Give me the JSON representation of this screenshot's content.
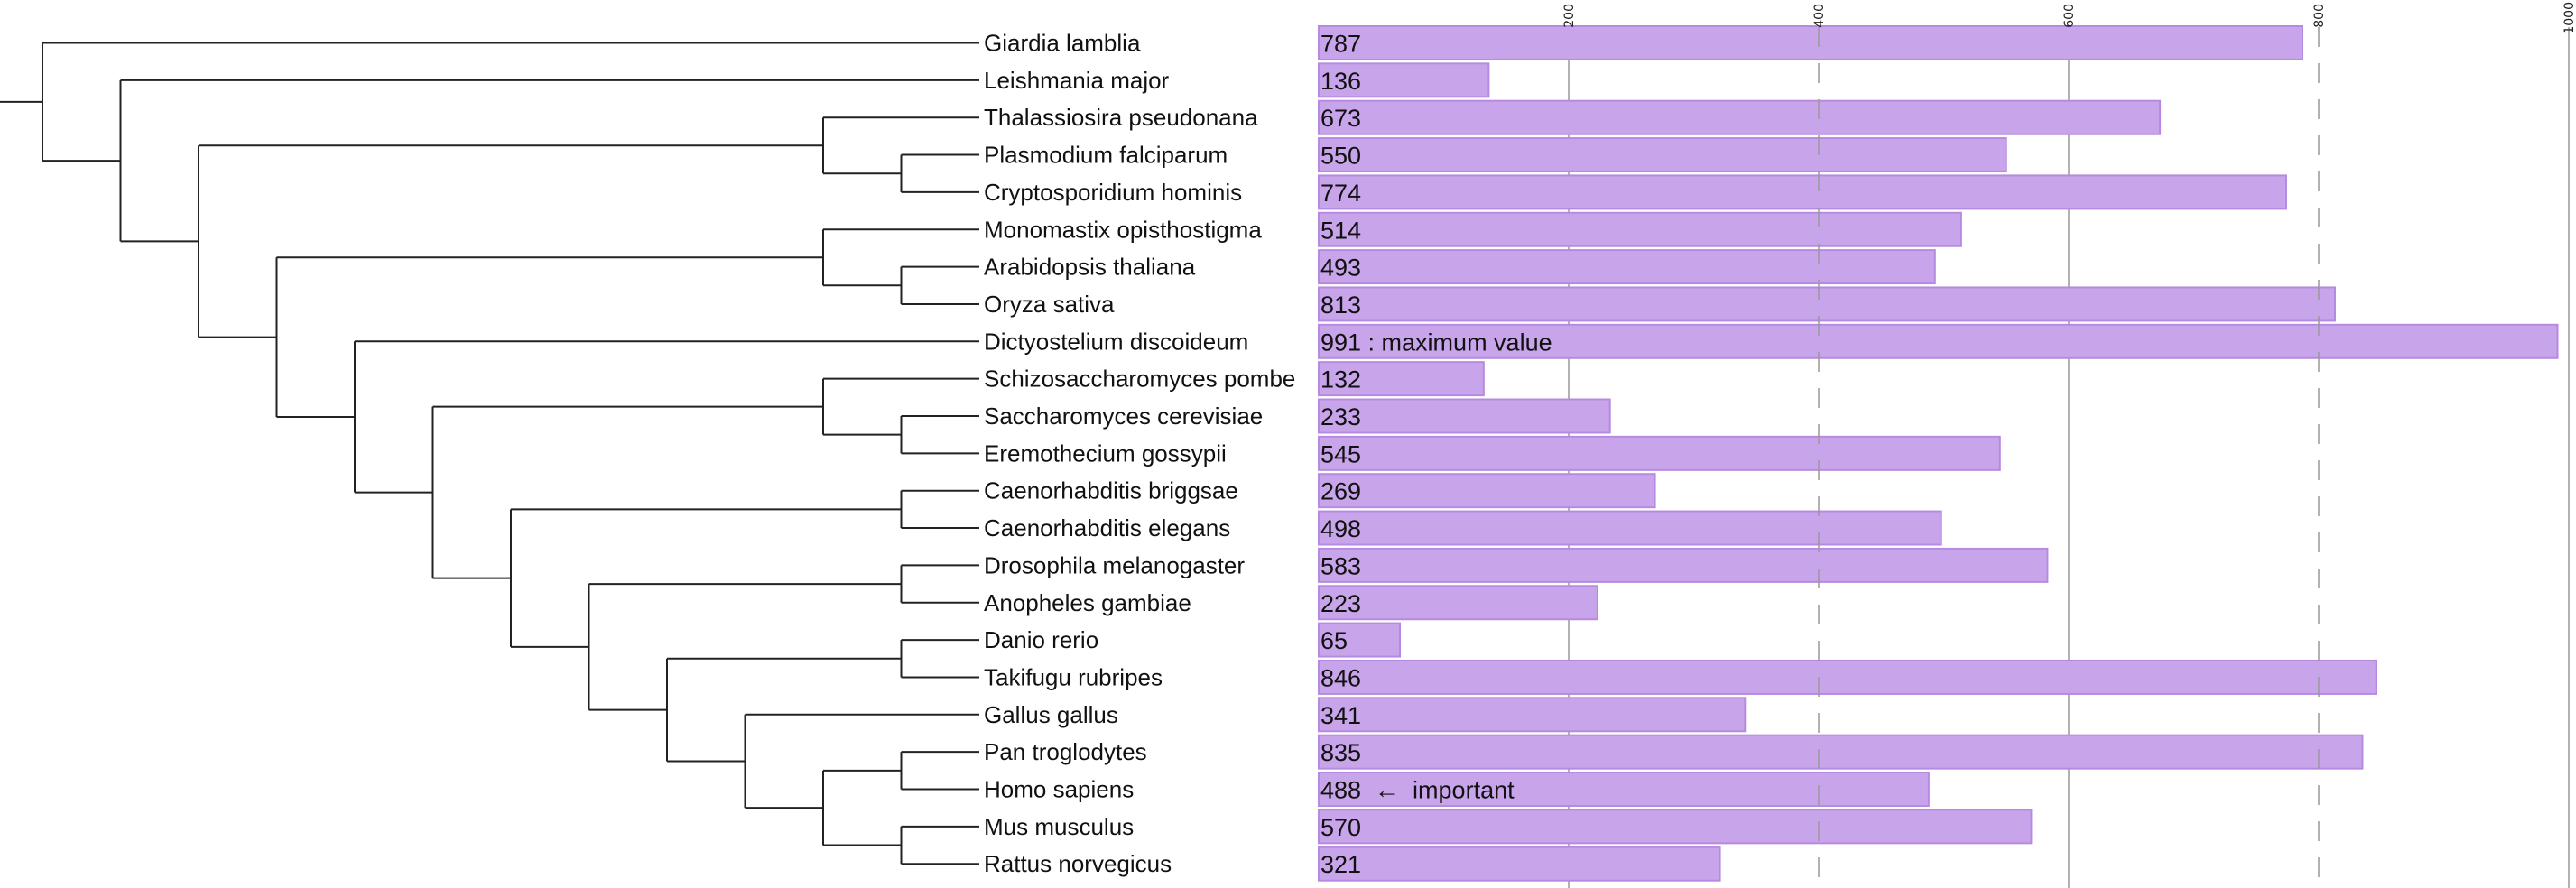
{
  "chart_data": {
    "type": "bar",
    "orientation": "horizontal",
    "layout": "phylogenetic tree with aligned bar chart",
    "xlim": [
      0,
      1000
    ],
    "ticks": [
      "200",
      "400",
      "600",
      "800",
      "1000"
    ],
    "tick_values": [
      200,
      400,
      600,
      800,
      1000
    ],
    "grid_styles": [
      "solid",
      "dashed",
      "solid",
      "dashed",
      "solid"
    ],
    "bar_color": "#c8a5ea",
    "bar_edge_color": "#b78ae2",
    "tree": [
      "Giardia lamblia",
      [
        "Leishmania major",
        [
          [
            "Thalassiosira pseudonana",
            [
              "Plasmodium falciparum",
              "Cryptosporidium hominis"
            ]
          ],
          [
            [
              "Monomastix opisthostigma",
              [
                "Arabidopsis thaliana",
                "Oryza sativa"
              ]
            ],
            [
              "Dictyostelium discoideum",
              [
                [
                  "Schizosaccharomyces pombe",
                  [
                    "Saccharomyces cerevisiae",
                    "Eremothecium gossypii"
                  ]
                ],
                [
                  [
                    "Caenorhabditis briggsae",
                    "Caenorhabditis elegans"
                  ],
                  [
                    [
                      "Drosophila melanogaster",
                      "Anopheles gambiae"
                    ],
                    [
                      [
                        "Danio rerio",
                        "Takifugu rubripes"
                      ],
                      [
                        "Gallus gallus",
                        [
                          [
                            "Pan troglodytes",
                            "Homo sapiens"
                          ],
                          [
                            "Mus musculus",
                            "Rattus norvegicus"
                          ]
                        ]
                      ]
                    ]
                  ]
                ]
              ]
            ]
          ]
        ]
      ]
    ],
    "categories": [
      "Giardia lamblia",
      "Leishmania major",
      "Thalassiosira pseudonana",
      "Plasmodium falciparum",
      "Cryptosporidium hominis",
      "Monomastix opisthostigma",
      "Arabidopsis thaliana",
      "Oryza sativa",
      "Dictyostelium discoideum",
      "Schizosaccharomyces pombe",
      "Saccharomyces cerevisiae",
      "Eremothecium gossypii",
      "Caenorhabditis briggsae",
      "Caenorhabditis elegans",
      "Drosophila melanogaster",
      "Anopheles gambiae",
      "Danio rerio",
      "Takifugu rubripes",
      "Gallus gallus",
      "Pan troglodytes",
      "Homo sapiens",
      "Mus musculus",
      "Rattus norvegicus"
    ],
    "values": [
      787,
      136,
      673,
      550,
      774,
      514,
      493,
      813,
      991,
      132,
      233,
      545,
      269,
      498,
      583,
      223,
      65,
      846,
      341,
      835,
      488,
      570,
      321
    ],
    "value_labels": [
      "787",
      "136",
      "673",
      "550",
      "774",
      "514",
      "493",
      "813",
      "991 : maximum value",
      "132",
      "233",
      "545",
      "269",
      "498",
      "583",
      "223",
      "65",
      "846",
      "341",
      "835",
      "488  ←  important",
      "570",
      "321"
    ]
  }
}
